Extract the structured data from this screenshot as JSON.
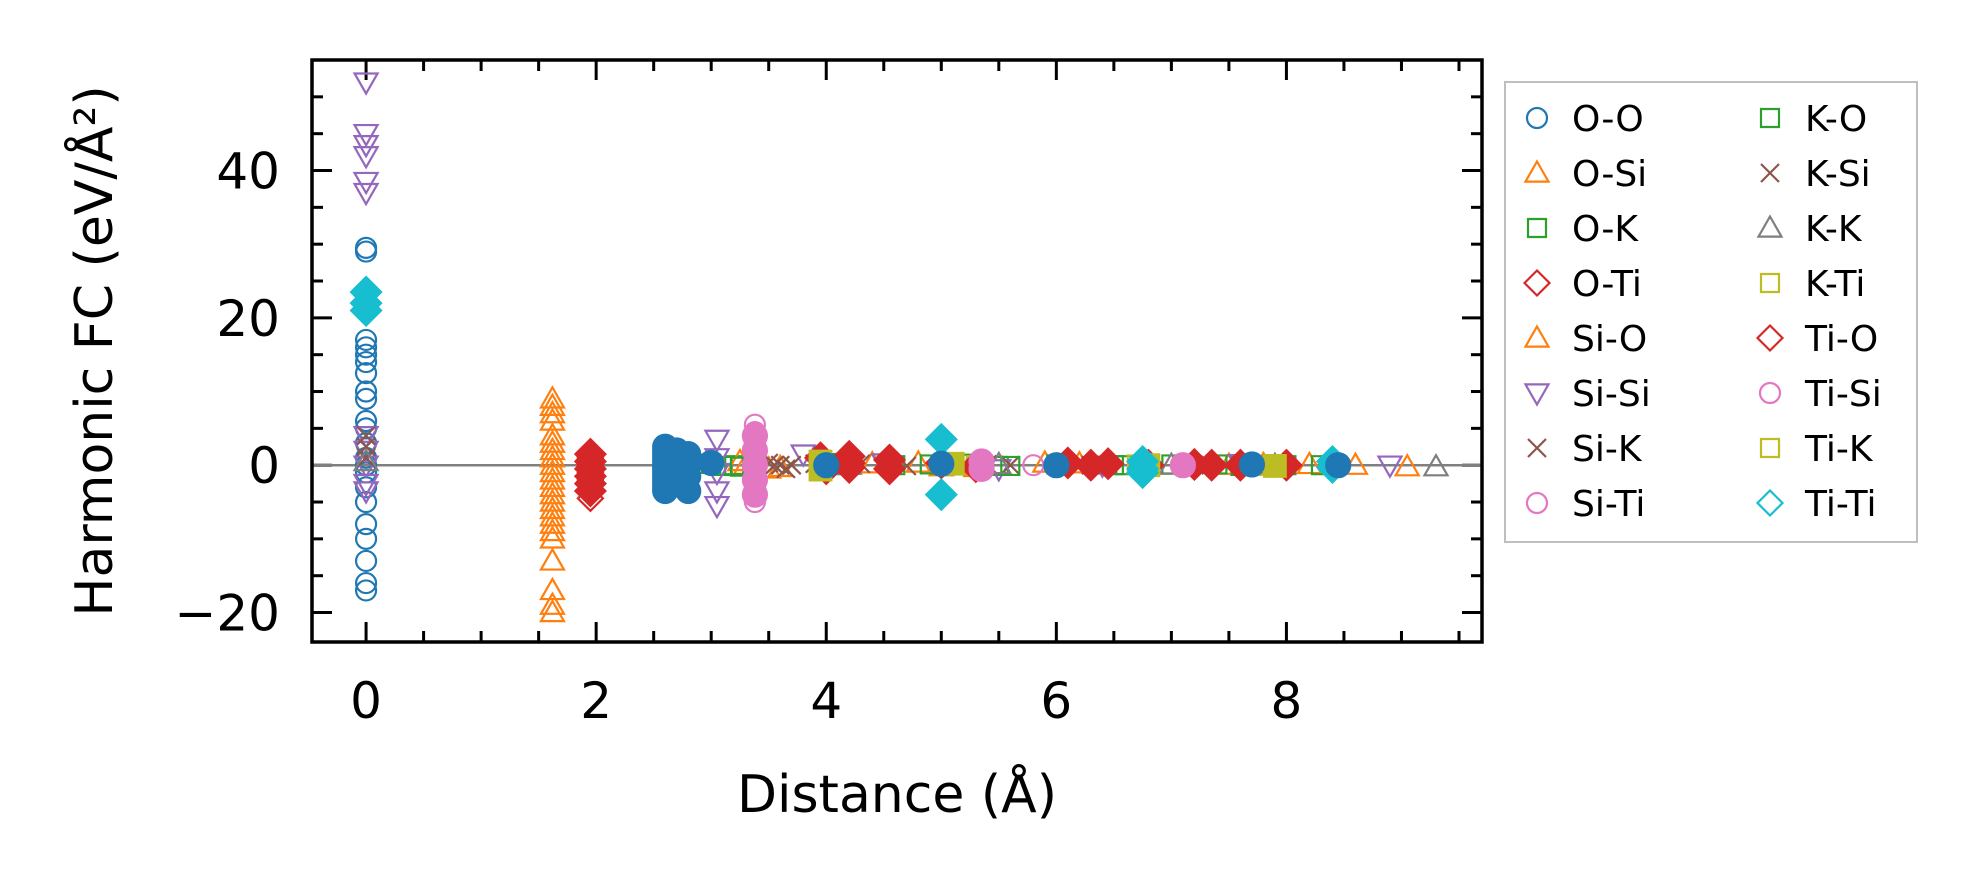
{
  "chart_data": {
    "type": "scatter",
    "xlabel": "Distance (Å)",
    "ylabel": "Harmonic FC (eV/Å²)",
    "xlim": [
      -0.47,
      9.7
    ],
    "ylim": [
      -24,
      55
    ],
    "xticks": [
      0,
      2,
      4,
      6,
      8
    ],
    "yticks": [
      -20,
      0,
      20,
      40
    ],
    "tick_labels_x": [
      "0",
      "2",
      "4",
      "6",
      "8"
    ],
    "tick_labels_y": [
      "−20",
      "0",
      "20",
      "40"
    ],
    "zero_line": 0,
    "grid": false,
    "legend_position": "outside-right",
    "series": [
      {
        "name": "O-O",
        "color": "#1f77b4",
        "marker": "circle",
        "fill": false,
        "points": [
          [
            0,
            29.5
          ],
          [
            0,
            29
          ],
          [
            0,
            17
          ],
          [
            0,
            16
          ],
          [
            0,
            15
          ],
          [
            0,
            14
          ],
          [
            0,
            12.5
          ],
          [
            0,
            10
          ],
          [
            0,
            9
          ],
          [
            0,
            6
          ],
          [
            0,
            5
          ],
          [
            0,
            3
          ],
          [
            0,
            1
          ],
          [
            0,
            0
          ],
          [
            0,
            -1
          ],
          [
            0,
            -3
          ],
          [
            0,
            -5
          ],
          [
            0,
            -8
          ],
          [
            0,
            -10
          ],
          [
            0,
            -13
          ],
          [
            0,
            -16
          ],
          [
            0,
            -17
          ]
        ]
      },
      {
        "name": "O-Si",
        "color": "#ff7f0e",
        "marker": "triangle-up",
        "fill": false,
        "points": [
          [
            1.62,
            9
          ],
          [
            1.62,
            8
          ],
          [
            1.62,
            7
          ],
          [
            1.62,
            6
          ],
          [
            1.62,
            4
          ],
          [
            1.62,
            3
          ],
          [
            1.62,
            2
          ],
          [
            1.62,
            1
          ],
          [
            1.62,
            0
          ],
          [
            1.62,
            -1
          ],
          [
            1.62,
            -2
          ],
          [
            1.62,
            -3
          ],
          [
            1.62,
            -4
          ],
          [
            1.62,
            -5
          ],
          [
            1.62,
            -6
          ],
          [
            1.62,
            -7
          ],
          [
            1.62,
            -8
          ],
          [
            1.62,
            -9
          ],
          [
            1.62,
            -10
          ],
          [
            1.62,
            -13
          ],
          [
            1.62,
            -17
          ],
          [
            1.62,
            -19
          ],
          [
            1.62,
            -20
          ],
          [
            3.3,
            0
          ],
          [
            3.6,
            -0.3
          ],
          [
            4.4,
            0.2
          ],
          [
            5.0,
            -0.2
          ],
          [
            5.9,
            0.3
          ],
          [
            7.5,
            0
          ],
          [
            8.2,
            0.1
          ],
          [
            9.05,
            -0.2
          ]
        ]
      },
      {
        "name": "O-K",
        "color": "#2ca02c",
        "marker": "square",
        "fill": false,
        "points": [
          [
            2.75,
            0
          ],
          [
            2.8,
            -0.3
          ],
          [
            3.0,
            0.2
          ],
          [
            3.1,
            -0.1
          ],
          [
            3.2,
            0
          ],
          [
            4.0,
            0.3
          ],
          [
            4.6,
            0
          ],
          [
            5.2,
            0.2
          ],
          [
            5.5,
            -0.1
          ],
          [
            6.0,
            0.1
          ],
          [
            6.6,
            0
          ],
          [
            7.0,
            0.1
          ],
          [
            7.6,
            -0.1
          ],
          [
            8.0,
            0
          ]
        ]
      },
      {
        "name": "O-Ti",
        "color": "#d62728",
        "marker": "diamond",
        "fill": false,
        "points": [
          [
            1.95,
            1
          ],
          [
            1.95,
            0.5
          ],
          [
            1.95,
            0
          ],
          [
            1.95,
            -1
          ],
          [
            1.95,
            -2
          ],
          [
            1.95,
            -3.5
          ],
          [
            1.95,
            -4.5
          ]
        ]
      },
      {
        "name": "Si-O",
        "color": "#ff7f0e",
        "marker": "triangle-up",
        "fill": false,
        "points": [
          [
            3.25,
            0.5
          ],
          [
            3.5,
            -0.5
          ],
          [
            4.1,
            0
          ],
          [
            4.8,
            0.3
          ],
          [
            5.3,
            -0.3
          ],
          [
            6.2,
            0.2
          ],
          [
            6.8,
            0
          ],
          [
            7.8,
            0.1
          ],
          [
            8.6,
            0
          ]
        ]
      },
      {
        "name": "Si-Si",
        "color": "#9467bd",
        "marker": "triangle-down",
        "fill": false,
        "points": [
          [
            0,
            52
          ],
          [
            0,
            45
          ],
          [
            0,
            43.5
          ],
          [
            0,
            42
          ],
          [
            0,
            38.5
          ],
          [
            0,
            37
          ],
          [
            0,
            4
          ],
          [
            0,
            2
          ],
          [
            0,
            0
          ],
          [
            0,
            -2.5
          ],
          [
            0,
            -3.5
          ],
          [
            3.05,
            3.5
          ],
          [
            3.05,
            1
          ],
          [
            3.05,
            -1
          ],
          [
            3.05,
            -3.5
          ],
          [
            3.05,
            -5.5
          ],
          [
            3.8,
            1.5
          ],
          [
            4.5,
            0.3
          ],
          [
            5.5,
            -0.5
          ],
          [
            6.4,
            0
          ],
          [
            7.6,
            0.2
          ],
          [
            8.9,
            0
          ]
        ]
      },
      {
        "name": "Si-K",
        "color": "#8c564b",
        "marker": "x",
        "fill": false,
        "points": [
          [
            0,
            4
          ],
          [
            0,
            2.5
          ],
          [
            0,
            1
          ],
          [
            3.5,
            0.3
          ],
          [
            3.6,
            0
          ],
          [
            3.65,
            -0.5
          ],
          [
            3.7,
            0
          ],
          [
            4.3,
            0.2
          ],
          [
            5.6,
            0
          ],
          [
            7.3,
            0.1
          ]
        ]
      },
      {
        "name": "Si-Ti",
        "color": "#e377c2",
        "marker": "circle",
        "fill": false,
        "points": [
          [
            3.38,
            5.5
          ],
          [
            3.38,
            4.5
          ],
          [
            3.38,
            3
          ],
          [
            3.38,
            2
          ],
          [
            3.38,
            1
          ],
          [
            3.38,
            0
          ],
          [
            3.38,
            -1
          ],
          [
            3.38,
            -2
          ],
          [
            3.38,
            -3
          ],
          [
            3.38,
            -4
          ],
          [
            3.38,
            -5
          ],
          [
            5.8,
            0
          ],
          [
            7.2,
            0
          ]
        ]
      },
      {
        "name": "K-O",
        "color": "#2ca02c",
        "marker": "square",
        "fill": false,
        "points": [
          [
            2.9,
            0.2
          ],
          [
            3.25,
            -0.2
          ],
          [
            4.1,
            0
          ],
          [
            4.9,
            0.1
          ],
          [
            5.6,
            -0.1
          ],
          [
            6.5,
            0
          ],
          [
            7.4,
            0.1
          ],
          [
            8.3,
            0
          ]
        ]
      },
      {
        "name": "K-Si",
        "color": "#8c564b",
        "marker": "x",
        "fill": false,
        "points": [
          [
            3.55,
            0
          ],
          [
            3.9,
            0.2
          ],
          [
            4.7,
            -0.1
          ],
          [
            5.4,
            0.1
          ],
          [
            6.3,
            0
          ],
          [
            7.2,
            0
          ]
        ]
      },
      {
        "name": "K-K",
        "color": "#7f7f7f",
        "marker": "triangle-up",
        "fill": false,
        "points": [
          [
            0,
            0.5
          ],
          [
            4.2,
            0
          ],
          [
            5.5,
            0.1
          ],
          [
            7.0,
            0
          ],
          [
            7.9,
            0
          ],
          [
            9.3,
            -0.2
          ]
        ]
      },
      {
        "name": "K-Ti",
        "color": "#bcbd22",
        "marker": "square",
        "fill": false,
        "points": [
          [
            3.95,
            0.4
          ],
          [
            3.95,
            -0.4
          ],
          [
            5.3,
            0
          ],
          [
            6.7,
            0.1
          ],
          [
            7.85,
            -0.1
          ]
        ]
      },
      {
        "name": "Ti-O",
        "color": "#d62728",
        "marker": "diamond",
        "fill": true,
        "points": [
          [
            1.95,
            1.5
          ],
          [
            1.95,
            0.5
          ],
          [
            1.95,
            -0.5
          ],
          [
            1.95,
            -1.5
          ],
          [
            1.95,
            -2.5
          ],
          [
            1.95,
            -3.5
          ],
          [
            3.95,
            1
          ],
          [
            4.0,
            -0.5
          ],
          [
            4.2,
            1.2
          ],
          [
            4.2,
            -0.3
          ],
          [
            4.2,
            0.3
          ],
          [
            4.55,
            0.7
          ],
          [
            4.55,
            -0.5
          ],
          [
            5.0,
            0.3
          ],
          [
            5.3,
            -0.2
          ],
          [
            6.1,
            0.3
          ],
          [
            6.3,
            0
          ],
          [
            6.45,
            0.2
          ],
          [
            6.8,
            0
          ],
          [
            7.2,
            0.1
          ],
          [
            7.35,
            0
          ],
          [
            7.6,
            0
          ],
          [
            8.0,
            0
          ]
        ]
      },
      {
        "name": "Ti-Si",
        "color": "#e377c2",
        "marker": "circle",
        "fill": true,
        "points": [
          [
            3.38,
            4
          ],
          [
            3.38,
            2
          ],
          [
            3.38,
            0
          ],
          [
            3.38,
            -2
          ],
          [
            3.38,
            -4
          ],
          [
            5.35,
            0.5
          ],
          [
            5.35,
            -0.5
          ],
          [
            7.1,
            0
          ]
        ]
      },
      {
        "name": "Ti-K",
        "color": "#bcbd22",
        "marker": "square",
        "fill": true,
        "points": [
          [
            3.95,
            0.5
          ],
          [
            3.95,
            -0.6
          ],
          [
            5.1,
            0.2
          ],
          [
            6.8,
            0
          ],
          [
            7.9,
            -0.1
          ]
        ]
      },
      {
        "name": "Ti-Ti",
        "color": "#17becf",
        "marker": "diamond",
        "fill": true,
        "points": [
          [
            0,
            23.5
          ],
          [
            0,
            22
          ],
          [
            0,
            21
          ],
          [
            5.0,
            3.5
          ],
          [
            5.0,
            -4
          ],
          [
            6.75,
            0.5
          ],
          [
            6.75,
            -0.5
          ],
          [
            6.75,
            -1
          ],
          [
            8.4,
            0.5
          ],
          [
            8.4,
            -0.3
          ]
        ]
      },
      {
        "name": "O-O",
        "legend": false,
        "color": "#1f77b4",
        "marker": "circle",
        "fill": true,
        "points": [
          [
            2.6,
            2.5
          ],
          [
            2.6,
            2
          ],
          [
            2.6,
            1.5
          ],
          [
            2.6,
            1
          ],
          [
            2.6,
            0.5
          ],
          [
            2.6,
            0
          ],
          [
            2.6,
            -0.5
          ],
          [
            2.6,
            -1
          ],
          [
            2.6,
            -1.5
          ],
          [
            2.6,
            -2
          ],
          [
            2.6,
            -2.5
          ],
          [
            2.6,
            -3
          ],
          [
            2.6,
            -3.5
          ],
          [
            2.7,
            2
          ],
          [
            2.7,
            1
          ],
          [
            2.7,
            0
          ],
          [
            2.7,
            -1
          ],
          [
            2.7,
            -2
          ],
          [
            2.8,
            1.5
          ],
          [
            2.8,
            0
          ],
          [
            2.8,
            -1.5
          ],
          [
            2.8,
            -3.5
          ],
          [
            3.0,
            0.3
          ],
          [
            4.0,
            0
          ],
          [
            5.0,
            0.2
          ],
          [
            6.0,
            0
          ],
          [
            7.7,
            0.1
          ],
          [
            8.45,
            0
          ]
        ]
      }
    ]
  }
}
